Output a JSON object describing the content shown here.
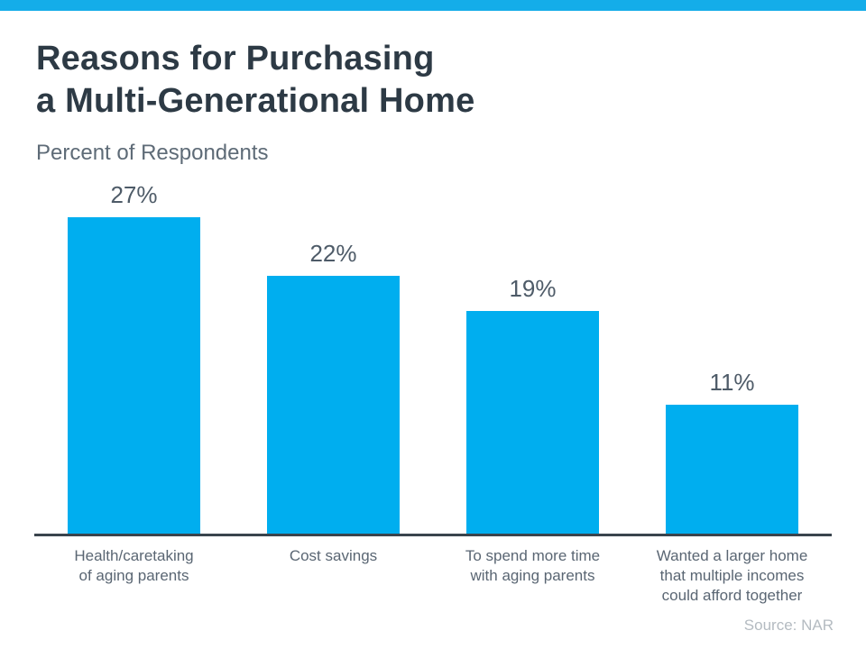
{
  "accent_color": "#14ADE9",
  "chart_data": {
    "type": "bar",
    "title": "Reasons for Purchasing\na Multi-Generational Home",
    "subtitle": "Percent of Respondents",
    "categories": [
      "Health/caretaking\nof aging parents",
      "Cost savings",
      "To spend more time\nwith aging parents",
      "Wanted a larger home\nthat multiple incomes\ncould afford together"
    ],
    "values": [
      27,
      22,
      19,
      11
    ],
    "data_labels": [
      "27%",
      "22%",
      "19%",
      "11%"
    ],
    "ylim": [
      0,
      30
    ],
    "grid": false,
    "legend": "none",
    "bar_color": "#00AEEF",
    "source": "Source: NAR"
  }
}
